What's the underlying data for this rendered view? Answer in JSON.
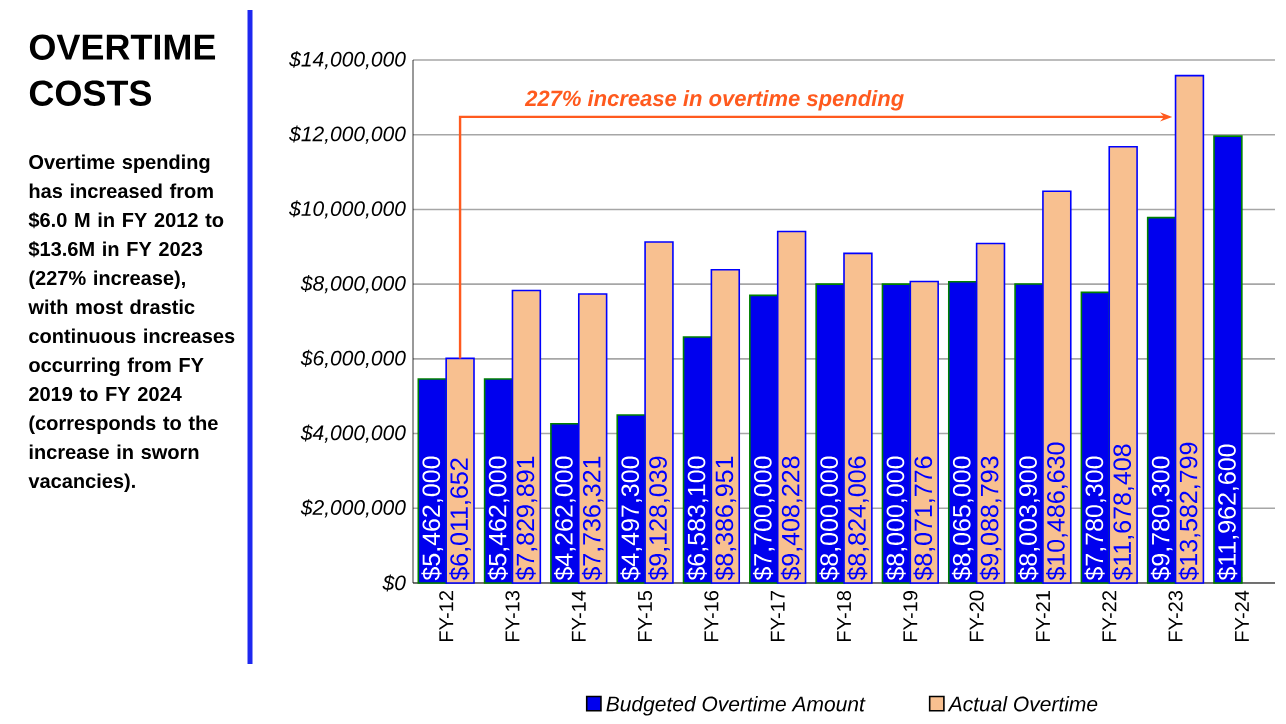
{
  "chart_data": {
    "type": "bar",
    "title": "OVERTIME COSTS",
    "subtitle": "Overtime spending has increased from $6.0 M in FY 2012 to $13.6M in FY 2023 (227% increase), with most drastic continuous increases occurring from FY 2019 to FY 2024 (corresponds to the increase in sworn vacancies).",
    "categories": [
      "FY-12",
      "FY-13",
      "FY-14",
      "FY-15",
      "FY-16",
      "FY-17",
      "FY-18",
      "FY-19",
      "FY-20",
      "FY-21",
      "FY-22",
      "FY-23",
      "FY-24"
    ],
    "series": [
      {
        "name": "Budgeted Overtime Amount",
        "color": "#0000ee",
        "values": [
          5462000,
          5462000,
          4262000,
          4497300,
          6583100,
          7700000,
          8000000,
          8000000,
          8065000,
          8003900,
          7780300,
          9780300,
          11962600
        ],
        "value_labels": [
          "$5,462,000",
          "$5,462,000",
          "$4,262,000",
          "$4,497,300",
          "$6,583,100",
          "$7,700,000",
          "$8,000,000",
          "$8,000,000",
          "$8,065,000",
          "$8,003,900",
          "$7,780,300",
          "$9,780,300",
          "$11,962,600"
        ]
      },
      {
        "name": "Actual Overtime",
        "color": "#f8c090",
        "values": [
          6011652,
          7829891,
          7736321,
          9128039,
          8386951,
          9408228,
          8824006,
          8071776,
          9088793,
          10486630,
          11678408,
          13582799,
          null
        ],
        "value_labels": [
          "$6,011,652",
          "$7,829,891",
          "$7,736,321",
          "$9,128,039",
          "$8,386,951",
          "$9,408,228",
          "$8,824,006",
          "$8,071,776",
          "$9,088,793",
          "$10,486,630",
          "$11,678,408",
          "$13,582,799",
          null
        ]
      }
    ],
    "ylim": [
      0,
      14000000
    ],
    "yticks": [
      {
        "value": 0,
        "label": "$0"
      },
      {
        "value": 2000000,
        "label": "$2,000,000"
      },
      {
        "value": 4000000,
        "label": "$4,000,000"
      },
      {
        "value": 6000000,
        "label": "$6,000,000"
      },
      {
        "value": 8000000,
        "label": "$8,000,000"
      },
      {
        "value": 10000000,
        "label": "$10,000,000"
      },
      {
        "value": 12000000,
        "label": "$12,000,000"
      },
      {
        "value": 14000000,
        "label": "$14,000,000"
      }
    ],
    "grid": "y",
    "legend": "bottom",
    "annotations": [
      "227% increase in overtime spending"
    ]
  }
}
